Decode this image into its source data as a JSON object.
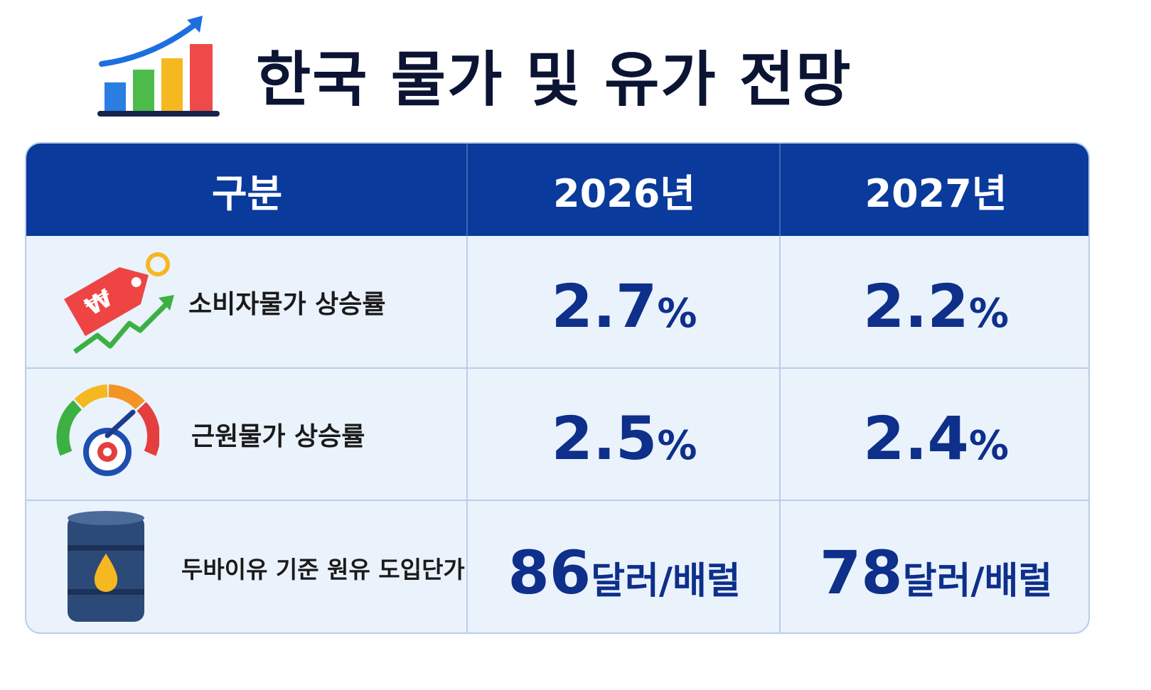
{
  "title": "한국 물가 및 유가 전망",
  "table": {
    "header": [
      "구분",
      "2026년",
      "2027년"
    ],
    "rows": [
      {
        "label": "소비자물가 상승률",
        "cells": [
          {
            "value": 2.7,
            "unit": "%"
          },
          {
            "value": 2.2,
            "unit": "%"
          }
        ]
      },
      {
        "label": "근원물가 상승률",
        "cells": [
          {
            "value": 2.5,
            "unit": "%"
          },
          {
            "value": 2.4,
            "unit": "%"
          }
        ]
      },
      {
        "label": "두바이유 기준 원유 도입단가",
        "cells": [
          {
            "value": 86,
            "unit": "달러/배럴"
          },
          {
            "value": 78,
            "unit": "달러/배럴"
          }
        ]
      }
    ]
  }
}
